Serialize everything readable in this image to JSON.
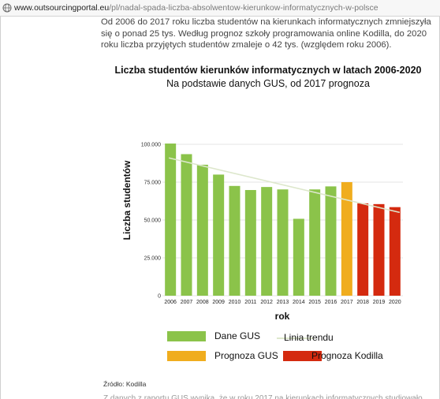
{
  "browser": {
    "url_domain": "www.outsourcingportal.eu",
    "url_path": "/pl/nadal-spada-liczba-absolwentow-kierunkow-informatycznych-w-polsce"
  },
  "article": {
    "intro": "Od 2006 do 2017 roku liczba studentów na kierunkach informatycznych zmniejszyła się o ponad 25 tys. Według prognoz szkoły programowania online Kodilla, do 2020 roku liczba przyjętych studentów zmaleje o 42 tys. (względem roku 2006).",
    "source": "Źródło: Kodilla",
    "next_line": "Z danych z raportu GUS wynika, że w roku 2017 na kierunkach informatycznych studiowało"
  },
  "chart_data": {
    "type": "bar",
    "title": "Liczba studentów kierunków informatycznych w latach 2006-2020",
    "subtitle": "Na podstawie danych GUS, od 2017 prognoza",
    "xlabel": "rok",
    "ylabel": "Liczba studentów",
    "ylim": [
      0,
      100000
    ],
    "yticks": [
      0,
      25000,
      50000,
      75000,
      100000
    ],
    "ytick_labels": [
      "0",
      "25.000",
      "50.000",
      "75.000",
      "100.000"
    ],
    "grid": true,
    "categories": [
      "2006",
      "2007",
      "2008",
      "2009",
      "2010",
      "2011",
      "2012",
      "2013",
      "2014",
      "2015",
      "2016",
      "2017",
      "2018",
      "2019",
      "2020"
    ],
    "series": [
      {
        "name": "Dane GUS",
        "color": "#8bc34a",
        "values": [
          100500,
          93500,
          86500,
          80000,
          72500,
          69800,
          71800,
          70200,
          50800,
          70200,
          72200,
          null,
          null,
          null,
          null
        ]
      },
      {
        "name": "Prognoza GUS",
        "color": "#f0ad1e",
        "values": [
          null,
          null,
          null,
          null,
          null,
          null,
          null,
          null,
          null,
          null,
          null,
          75000,
          null,
          null,
          null
        ]
      },
      {
        "name": "Prognoza Kodilla",
        "color": "#d42a0f",
        "values": [
          null,
          null,
          null,
          null,
          null,
          null,
          null,
          null,
          null,
          null,
          null,
          null,
          61000,
          60500,
          58500
        ]
      }
    ],
    "trend": {
      "name": "Linia trendu",
      "color": "#dde7cc",
      "start_value": 91000,
      "end_value": 55000
    },
    "legend": [
      {
        "label": "Dane GUS",
        "kind": "box",
        "color": "#8bc34a"
      },
      {
        "label": "Linia trendu",
        "kind": "line",
        "color": "#dde7cc"
      },
      {
        "label": "Prognoza GUS",
        "kind": "box",
        "color": "#f0ad1e"
      },
      {
        "label": "Prognoza Kodilla",
        "kind": "box",
        "color": "#d42a0f"
      }
    ]
  }
}
